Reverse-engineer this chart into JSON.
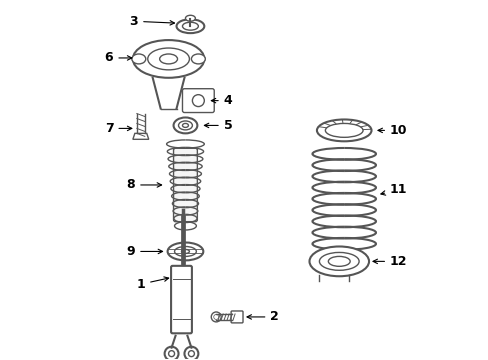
{
  "background_color": "#ffffff",
  "line_color": "#555555",
  "label_color": "#000000",
  "fig_width": 4.89,
  "fig_height": 3.6,
  "dpi": 100,
  "label_fontsize": 9
}
